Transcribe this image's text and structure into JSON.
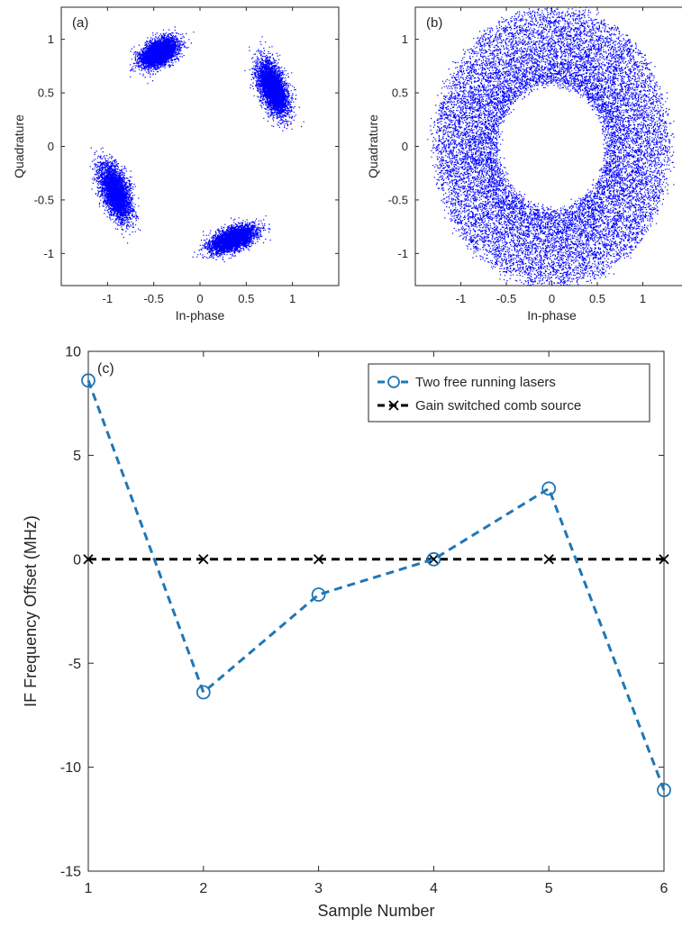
{
  "chart_data": [
    {
      "type": "scatter",
      "panel_label": "(a)",
      "xlabel": "In-phase",
      "ylabel": "Quadrature",
      "xlim": [
        -1.5,
        1.5
      ],
      "ylim": [
        -1.3,
        1.3
      ],
      "xticks": [
        -1,
        -0.5,
        0,
        0.5,
        1
      ],
      "xtick_labels": [
        "-1",
        "-0.5",
        "0",
        "0.5",
        "1"
      ],
      "yticks": [
        -1,
        -0.5,
        0,
        0.5,
        1
      ],
      "ytick_labels": [
        "-1",
        "-0.5",
        "0",
        "0.5",
        "1"
      ],
      "grid": false,
      "color": "#0000ff",
      "clusters": [
        {
          "center": [
            -0.45,
            0.88
          ],
          "spread": [
            0.19,
            0.1
          ],
          "angle_deg": 25,
          "points": 4000
        },
        {
          "center": [
            0.78,
            0.55
          ],
          "spread": [
            0.12,
            0.25
          ],
          "angle_deg": 25,
          "points": 4000
        },
        {
          "center": [
            -0.92,
            -0.42
          ],
          "spread": [
            0.12,
            0.25
          ],
          "angle_deg": 25,
          "points": 4000
        },
        {
          "center": [
            0.35,
            -0.86
          ],
          "spread": [
            0.23,
            0.09
          ],
          "angle_deg": 18,
          "points": 4000
        }
      ]
    },
    {
      "type": "scatter",
      "panel_label": "(b)",
      "xlabel": "In-phase",
      "ylabel": "Quadrature",
      "xlim": [
        -1.5,
        1.5
      ],
      "ylim": [
        -1.3,
        1.3
      ],
      "xticks": [
        -1,
        -0.5,
        0,
        0.5,
        1
      ],
      "xtick_labels": [
        "-1",
        "-0.5",
        "0",
        "0.5",
        "1"
      ],
      "yticks": [
        -1,
        -0.5,
        0,
        0.5,
        1
      ],
      "ytick_labels": [
        "-1",
        "-0.5",
        "0",
        "0.5",
        "1"
      ],
      "grid": false,
      "color": "#0000ff",
      "ring": {
        "center": [
          0,
          0
        ],
        "inner_radius": 0.6,
        "outer_radius": 1.3,
        "points": 16000
      }
    },
    {
      "type": "line",
      "panel_label": "(c)",
      "xlabel": "Sample Number",
      "ylabel": "IF Frequency Offset (MHz)",
      "xlim": [
        1,
        6
      ],
      "ylim": [
        -15,
        10
      ],
      "xticks": [
        1,
        2,
        3,
        4,
        5,
        6
      ],
      "xtick_labels": [
        "1",
        "2",
        "3",
        "4",
        "5",
        "6"
      ],
      "yticks": [
        -15,
        -10,
        -5,
        0,
        5,
        10
      ],
      "ytick_labels": [
        "-15",
        "-10",
        "-5",
        "0",
        "5",
        "10"
      ],
      "grid": false,
      "legend_position": "top-right",
      "x": [
        1,
        2,
        3,
        4,
        5,
        6
      ],
      "series": [
        {
          "name": "Two free running lasers",
          "values": [
            8.6,
            -6.4,
            -1.7,
            0,
            3.4,
            -11.1
          ],
          "color": "#1f77b4",
          "marker": "circle",
          "line": "dashed"
        },
        {
          "name": "Gain switched comb source",
          "values": [
            0,
            0,
            0,
            0,
            0,
            0
          ],
          "color": "#000000",
          "marker": "x",
          "line": "dashed"
        }
      ]
    }
  ]
}
